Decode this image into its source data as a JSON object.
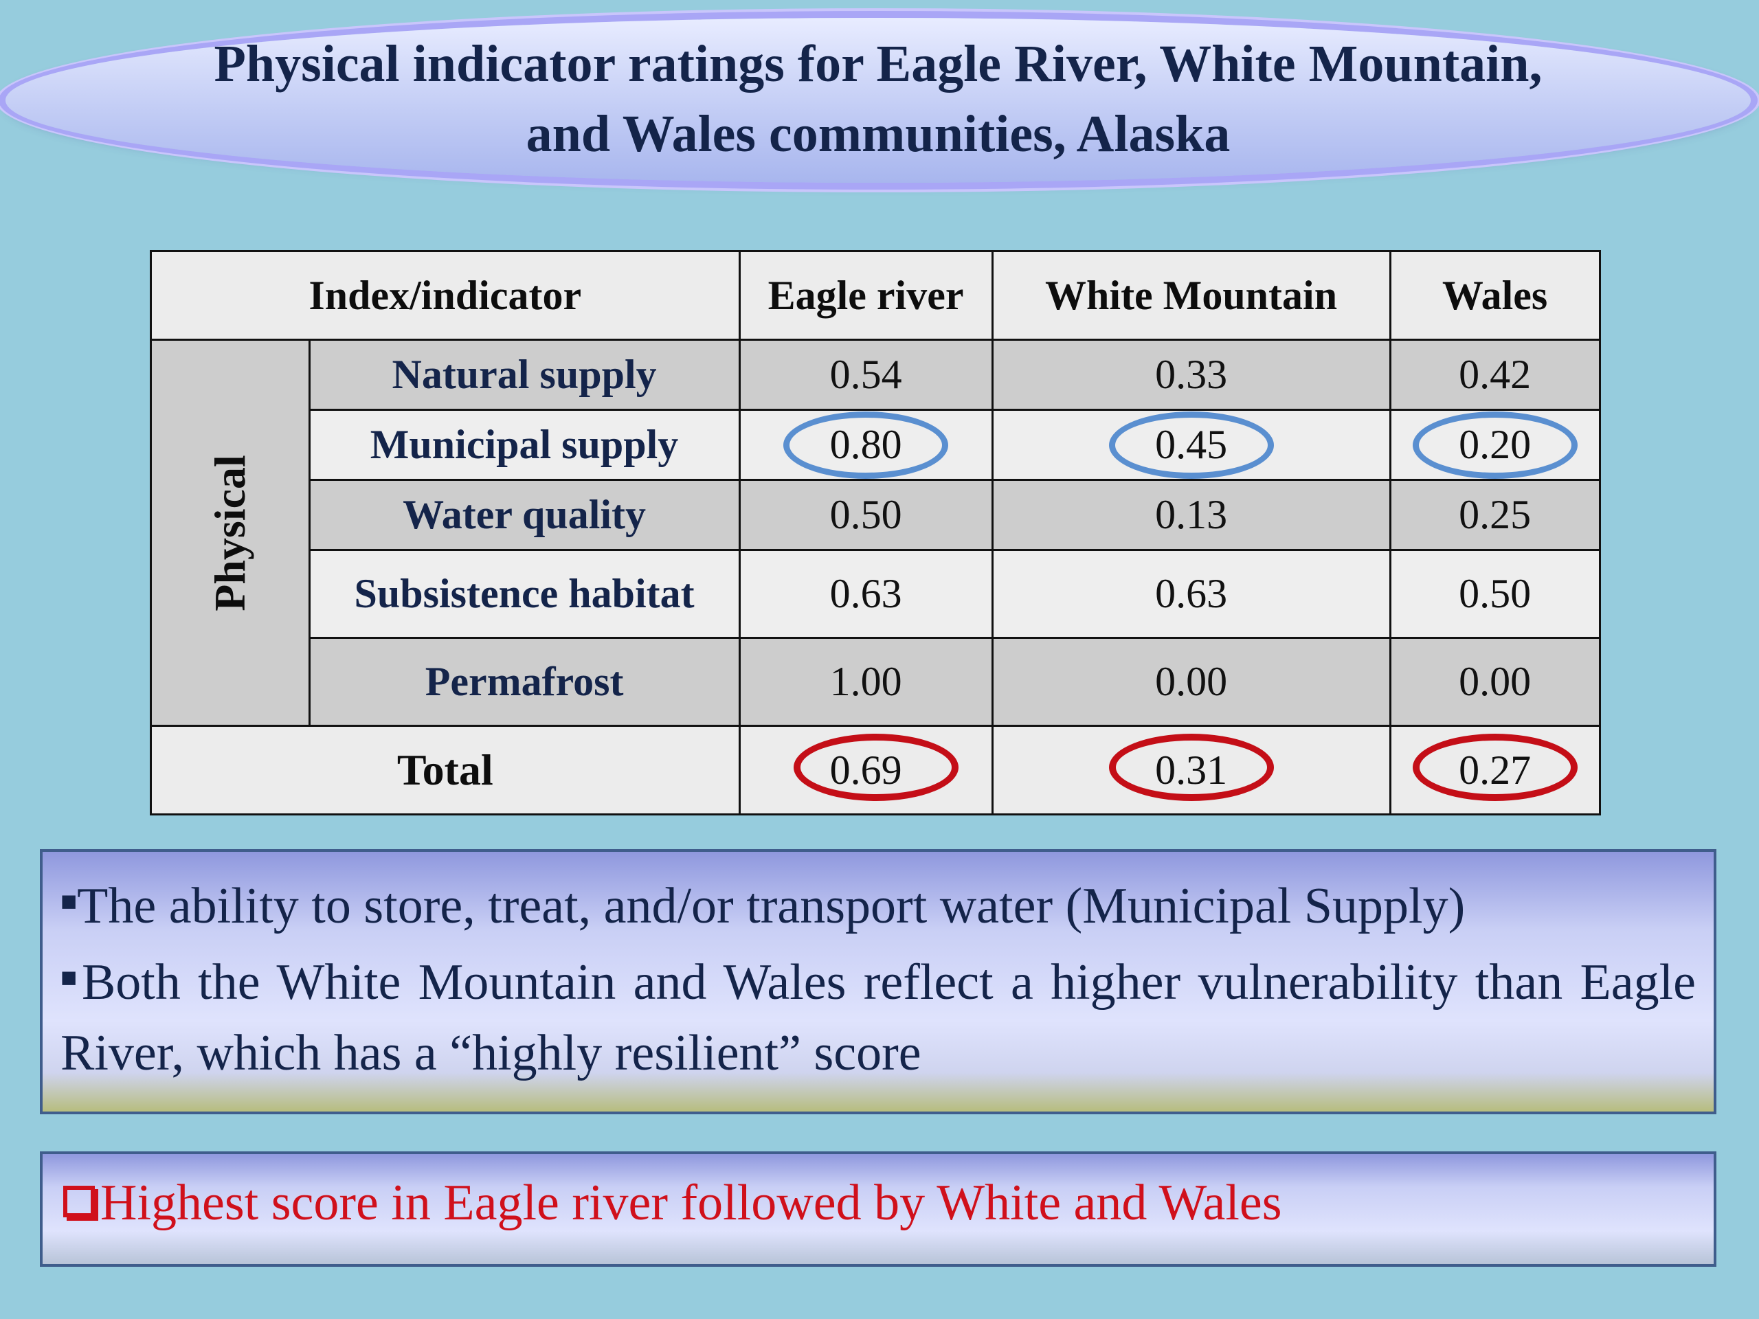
{
  "title": "Physical indicator ratings for Eagle River, White Mountain,\nand Wales communities, Alaska",
  "table": {
    "header": {
      "index": "Index/indicator",
      "cols": [
        "Eagle river",
        "White Mountain",
        "Wales"
      ]
    },
    "group_label": "Physical",
    "rows": [
      {
        "label": "Natural supply",
        "values": [
          "0.54",
          "0.33",
          "0.42"
        ]
      },
      {
        "label": "Municipal supply",
        "values": [
          "0.80",
          "0.45",
          "0.20"
        ]
      },
      {
        "label": "Water quality",
        "values": [
          "0.50",
          "0.13",
          "0.25"
        ]
      },
      {
        "label": "Subsistence habitat",
        "values": [
          "0.63",
          "0.63",
          "0.50"
        ]
      },
      {
        "label": "Permafrost",
        "values": [
          "1.00",
          "0.00",
          "0.00"
        ]
      }
    ],
    "total": {
      "label": "Total",
      "values": [
        "0.69",
        "0.31",
        "0.27"
      ]
    },
    "circled_blue_row": "Municipal supply",
    "circled_red_row": "Total"
  },
  "notes": {
    "bullet_1": "The ability to store, treat, and/or transport water (Municipal Supply)",
    "bullet_2": "Both the White Mountain and Wales reflect a higher vulnerability than Eagle River, which has a “highly resilient” score"
  },
  "highlight": "Highest score in Eagle river followed by White and Wales",
  "colors": {
    "background": "#96ccdd",
    "title_text": "#14244a",
    "blue_ring": "#5a8fd0",
    "red_ring": "#c40e17",
    "highlight_text": "#d0101b"
  }
}
